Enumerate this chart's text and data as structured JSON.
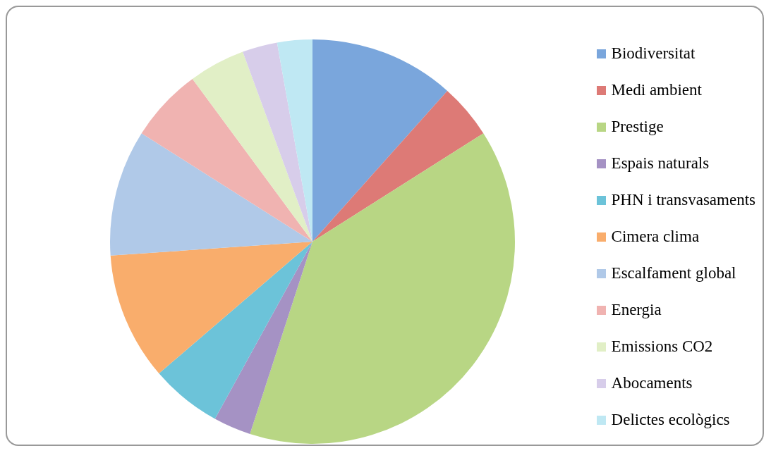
{
  "chart_data": {
    "type": "pie",
    "categories": [
      "Biodiversitat",
      "Medi ambient",
      "Prestige",
      "Espais naturals",
      "PHN i transvasaments",
      "Cimera clima",
      "Escalfament global",
      "Energia",
      "Emissions CO2",
      "Abocaments",
      "Delictes ecològics"
    ],
    "values": [
      11.6,
      4.4,
      39.0,
      3.0,
      5.7,
      10.2,
      10.1,
      5.9,
      4.5,
      2.8,
      2.8
    ],
    "colors": [
      "#7aa6dc",
      "#dd7a76",
      "#b8d684",
      "#a592c4",
      "#6cc3d9",
      "#f9ad6c",
      "#b0c9e8",
      "#f0b3b1",
      "#e1efc6",
      "#d7cdea",
      "#bfe8f3"
    ],
    "legend": "right"
  }
}
